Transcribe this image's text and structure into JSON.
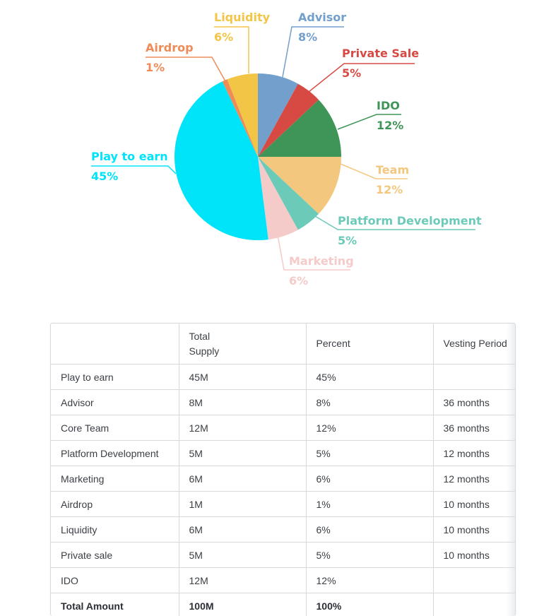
{
  "chart_data": {
    "type": "pie",
    "slices": [
      {
        "label": "Advisor",
        "value": 8,
        "pct": "8%",
        "color": "#729fcb"
      },
      {
        "label": "Private Sale",
        "value": 5,
        "pct": "5%",
        "color": "#d74a44"
      },
      {
        "label": "IDO",
        "value": 12,
        "pct": "12%",
        "color": "#3f9557"
      },
      {
        "label": "Team",
        "value": 12,
        "pct": "12%",
        "color": "#f4c77f"
      },
      {
        "label": "Platform Development",
        "value": 5,
        "pct": "5%",
        "color": "#6ccab9"
      },
      {
        "label": "Marketing",
        "value": 6,
        "pct": "6%",
        "color": "#f5cbca"
      },
      {
        "label": "Play to earn",
        "value": 45,
        "pct": "45%",
        "color": "#00e4fa"
      },
      {
        "label": "Airdrop",
        "value": 1,
        "pct": "1%",
        "color": "#ee8b57"
      },
      {
        "label": "Liquidity",
        "value": 6,
        "pct": "6%",
        "color": "#f3c546"
      }
    ]
  },
  "table": {
    "headers": [
      "",
      "Total Supply",
      "Percent",
      "Vesting Period"
    ],
    "header_lines": {
      "supply_1": "Total",
      "supply_2": "Supply"
    },
    "rows": [
      [
        "Play to earn",
        "45M",
        "45%",
        ""
      ],
      [
        "Advisor",
        "8M",
        "8%",
        "36 months"
      ],
      [
        "Core Team",
        "12M",
        "12%",
        "36 months"
      ],
      [
        "Platform Development",
        "5M",
        "5%",
        "12 months"
      ],
      [
        "Marketing",
        "6M",
        "6%",
        "12 months"
      ],
      [
        "Airdrop",
        "1M",
        "1%",
        "10 months"
      ],
      [
        "Liquidity",
        "6M",
        "6%",
        "10 months"
      ],
      [
        "Private sale",
        "5M",
        "5%",
        "10 months"
      ],
      [
        "IDO",
        "12M",
        "12%",
        ""
      ]
    ],
    "total": [
      "Total Amount",
      "100M",
      "100%",
      ""
    ]
  }
}
